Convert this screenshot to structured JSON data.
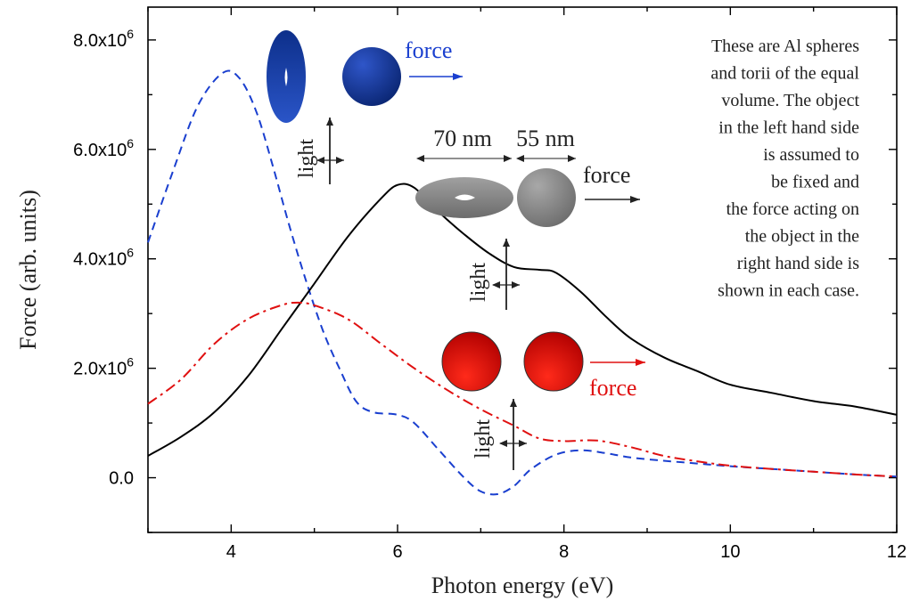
{
  "chart_data": {
    "type": "line",
    "xlabel": "Photon energy (eV)",
    "ylabel": "Force (arb. units)",
    "xlim": [
      3,
      12
    ],
    "ylim": [
      -1000000,
      8600000
    ],
    "x_ticks": [
      {
        "value": 4,
        "label": "4"
      },
      {
        "value": 6,
        "label": "6"
      },
      {
        "value": 8,
        "label": "8"
      },
      {
        "value": 10,
        "label": "10"
      },
      {
        "value": 12,
        "label": "12"
      }
    ],
    "y_ticks": [
      {
        "value": 0,
        "label": "0.0"
      },
      {
        "value": 2000000,
        "label": "2.0x10",
        "exp": "6"
      },
      {
        "value": 4000000,
        "label": "4.0x10",
        "exp": "6"
      },
      {
        "value": 6000000,
        "label": "6.0x10",
        "exp": "6"
      },
      {
        "value": 8000000,
        "label": "8.0x10",
        "exp": "6"
      }
    ],
    "series": [
      {
        "style": "dashed",
        "color": "#1a3fcf",
        "points": [
          [
            3.0,
            4300000
          ],
          [
            3.3,
            5600000
          ],
          [
            3.6,
            6800000
          ],
          [
            3.9,
            7400000
          ],
          [
            4.1,
            7300000
          ],
          [
            4.3,
            6700000
          ],
          [
            4.5,
            5700000
          ],
          [
            4.7,
            4600000
          ],
          [
            4.9,
            3600000
          ],
          [
            5.1,
            2700000
          ],
          [
            5.3,
            2000000
          ],
          [
            5.5,
            1400000
          ],
          [
            5.7,
            1200000
          ],
          [
            6.0,
            1150000
          ],
          [
            6.2,
            1000000
          ],
          [
            6.5,
            500000
          ],
          [
            6.8,
            0
          ],
          [
            7.0,
            -250000
          ],
          [
            7.2,
            -300000
          ],
          [
            7.4,
            -150000
          ],
          [
            7.6,
            150000
          ],
          [
            7.9,
            420000
          ],
          [
            8.2,
            500000
          ],
          [
            8.5,
            450000
          ],
          [
            8.8,
            370000
          ],
          [
            9.2,
            310000
          ],
          [
            9.6,
            260000
          ],
          [
            10.0,
            210000
          ],
          [
            10.5,
            160000
          ],
          [
            11.0,
            110000
          ],
          [
            11.5,
            60000
          ],
          [
            12.0,
            20000
          ]
        ]
      },
      {
        "style": "solid",
        "color": "#000000",
        "points": [
          [
            3.0,
            400000
          ],
          [
            3.4,
            750000
          ],
          [
            3.8,
            1200000
          ],
          [
            4.2,
            1850000
          ],
          [
            4.6,
            2700000
          ],
          [
            5.0,
            3550000
          ],
          [
            5.4,
            4400000
          ],
          [
            5.8,
            5100000
          ],
          [
            6.0,
            5350000
          ],
          [
            6.2,
            5300000
          ],
          [
            6.5,
            4850000
          ],
          [
            6.8,
            4450000
          ],
          [
            7.1,
            4100000
          ],
          [
            7.4,
            3850000
          ],
          [
            7.7,
            3800000
          ],
          [
            7.9,
            3750000
          ],
          [
            8.2,
            3400000
          ],
          [
            8.5,
            2950000
          ],
          [
            8.8,
            2550000
          ],
          [
            9.2,
            2200000
          ],
          [
            9.6,
            1950000
          ],
          [
            10.0,
            1700000
          ],
          [
            10.5,
            1550000
          ],
          [
            11.0,
            1400000
          ],
          [
            11.5,
            1300000
          ],
          [
            12.0,
            1150000
          ]
        ]
      },
      {
        "style": "dashdot",
        "color": "#e01010",
        "points": [
          [
            3.0,
            1350000
          ],
          [
            3.4,
            1800000
          ],
          [
            3.8,
            2450000
          ],
          [
            4.2,
            2900000
          ],
          [
            4.6,
            3150000
          ],
          [
            4.8,
            3200000
          ],
          [
            5.0,
            3150000
          ],
          [
            5.4,
            2900000
          ],
          [
            5.8,
            2450000
          ],
          [
            6.2,
            2000000
          ],
          [
            6.6,
            1600000
          ],
          [
            7.0,
            1250000
          ],
          [
            7.4,
            950000
          ],
          [
            7.7,
            720000
          ],
          [
            8.0,
            670000
          ],
          [
            8.4,
            680000
          ],
          [
            8.8,
            560000
          ],
          [
            9.2,
            400000
          ],
          [
            9.6,
            300000
          ],
          [
            10.0,
            220000
          ],
          [
            10.5,
            160000
          ],
          [
            11.0,
            110000
          ],
          [
            11.5,
            60000
          ],
          [
            12.0,
            20000
          ]
        ]
      }
    ]
  },
  "annotations": {
    "force_blue": "force",
    "force_black": "force",
    "force_red": "force",
    "light": "light",
    "dim_torus": "70 nm",
    "dim_sphere": "55 nm",
    "note_lines": [
      "These are Al spheres",
      "and torii of the equal",
      "volume. The object",
      "in the left hand side",
      "is assumed to",
      "be fixed and",
      "the force acting on",
      "the object in the",
      "right hand side is",
      "shown in each case."
    ]
  }
}
